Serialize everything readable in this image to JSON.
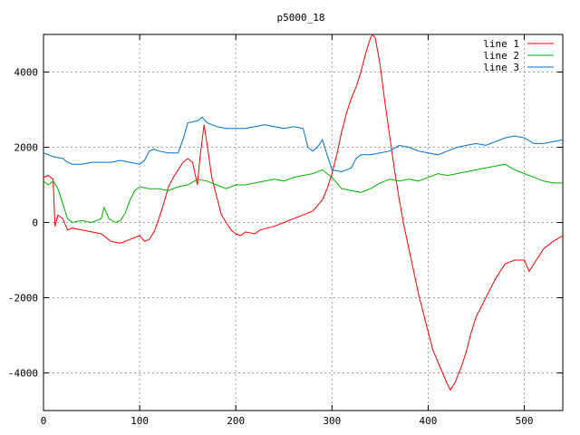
{
  "chart_data": {
    "type": "line",
    "title": "p5000_18",
    "xlabel": "",
    "ylabel": "",
    "xlim": [
      0,
      540
    ],
    "ylim": [
      -5000,
      5000
    ],
    "xticks": [
      0,
      100,
      200,
      300,
      400,
      500
    ],
    "yticks": [
      -4000,
      -2000,
      0,
      2000,
      4000
    ],
    "grid": true,
    "legend_position": "top-right",
    "series": [
      {
        "name": "line 1",
        "color": "#ff0000",
        "points": [
          [
            0,
            1200
          ],
          [
            5,
            1250
          ],
          [
            10,
            1150
          ],
          [
            12,
            -100
          ],
          [
            15,
            200
          ],
          [
            20,
            100
          ],
          [
            25,
            -200
          ],
          [
            30,
            -150
          ],
          [
            40,
            -200
          ],
          [
            50,
            -250
          ],
          [
            60,
            -300
          ],
          [
            70,
            -500
          ],
          [
            80,
            -550
          ],
          [
            90,
            -450
          ],
          [
            100,
            -350
          ],
          [
            105,
            -500
          ],
          [
            110,
            -450
          ],
          [
            115,
            -250
          ],
          [
            120,
            100
          ],
          [
            125,
            500
          ],
          [
            130,
            950
          ],
          [
            135,
            1200
          ],
          [
            140,
            1400
          ],
          [
            145,
            1600
          ],
          [
            150,
            1700
          ],
          [
            155,
            1600
          ],
          [
            160,
            1000
          ],
          [
            163,
            1800
          ],
          [
            167,
            2600
          ],
          [
            170,
            2100
          ],
          [
            175,
            1200
          ],
          [
            180,
            700
          ],
          [
            185,
            200
          ],
          [
            190,
            0
          ],
          [
            195,
            -200
          ],
          [
            200,
            -300
          ],
          [
            205,
            -350
          ],
          [
            210,
            -250
          ],
          [
            220,
            -300
          ],
          [
            225,
            -200
          ],
          [
            240,
            -100
          ],
          [
            250,
            0
          ],
          [
            260,
            100
          ],
          [
            270,
            200
          ],
          [
            280,
            300
          ],
          [
            290,
            600
          ],
          [
            295,
            900
          ],
          [
            300,
            1300
          ],
          [
            305,
            1800
          ],
          [
            310,
            2400
          ],
          [
            315,
            2900
          ],
          [
            320,
            3300
          ],
          [
            325,
            3600
          ],
          [
            330,
            4000
          ],
          [
            335,
            4500
          ],
          [
            340,
            4900
          ],
          [
            342,
            5000
          ],
          [
            345,
            4900
          ],
          [
            350,
            4200
          ],
          [
            355,
            3200
          ],
          [
            360,
            2300
          ],
          [
            365,
            1400
          ],
          [
            370,
            600
          ],
          [
            375,
            -100
          ],
          [
            380,
            -700
          ],
          [
            385,
            -1300
          ],
          [
            390,
            -1900
          ],
          [
            395,
            -2400
          ],
          [
            400,
            -2900
          ],
          [
            405,
            -3400
          ],
          [
            410,
            -3700
          ],
          [
            415,
            -4000
          ],
          [
            420,
            -4300
          ],
          [
            423,
            -4450
          ],
          [
            428,
            -4250
          ],
          [
            435,
            -3800
          ],
          [
            440,
            -3400
          ],
          [
            445,
            -2900
          ],
          [
            450,
            -2500
          ],
          [
            460,
            -2000
          ],
          [
            470,
            -1500
          ],
          [
            480,
            -1100
          ],
          [
            490,
            -1000
          ],
          [
            500,
            -1000
          ],
          [
            505,
            -1300
          ],
          [
            510,
            -1100
          ],
          [
            520,
            -700
          ],
          [
            530,
            -500
          ],
          [
            540,
            -350
          ]
        ]
      },
      {
        "name": "line 2",
        "color": "#00b000",
        "points": [
          [
            0,
            1100
          ],
          [
            5,
            1000
          ],
          [
            10,
            1100
          ],
          [
            15,
            900
          ],
          [
            20,
            500
          ],
          [
            25,
            100
          ],
          [
            30,
            0
          ],
          [
            40,
            50
          ],
          [
            50,
            0
          ],
          [
            60,
            100
          ],
          [
            63,
            400
          ],
          [
            68,
            100
          ],
          [
            75,
            0
          ],
          [
            80,
            50
          ],
          [
            85,
            250
          ],
          [
            90,
            600
          ],
          [
            95,
            850
          ],
          [
            100,
            950
          ],
          [
            110,
            900
          ],
          [
            120,
            900
          ],
          [
            130,
            850
          ],
          [
            140,
            950
          ],
          [
            150,
            1000
          ],
          [
            160,
            1150
          ],
          [
            170,
            1100
          ],
          [
            180,
            1000
          ],
          [
            190,
            900
          ],
          [
            200,
            1000
          ],
          [
            210,
            1000
          ],
          [
            220,
            1050
          ],
          [
            230,
            1100
          ],
          [
            240,
            1150
          ],
          [
            250,
            1100
          ],
          [
            260,
            1200
          ],
          [
            270,
            1250
          ],
          [
            280,
            1300
          ],
          [
            290,
            1400
          ],
          [
            300,
            1200
          ],
          [
            310,
            900
          ],
          [
            320,
            850
          ],
          [
            330,
            800
          ],
          [
            340,
            900
          ],
          [
            350,
            1050
          ],
          [
            360,
            1150
          ],
          [
            370,
            1100
          ],
          [
            380,
            1150
          ],
          [
            390,
            1100
          ],
          [
            400,
            1200
          ],
          [
            410,
            1300
          ],
          [
            420,
            1250
          ],
          [
            430,
            1300
          ],
          [
            440,
            1350
          ],
          [
            450,
            1400
          ],
          [
            460,
            1450
          ],
          [
            470,
            1500
          ],
          [
            480,
            1550
          ],
          [
            490,
            1400
          ],
          [
            500,
            1300
          ],
          [
            510,
            1200
          ],
          [
            520,
            1100
          ],
          [
            530,
            1050
          ],
          [
            540,
            1050
          ]
        ]
      },
      {
        "name": "line 3",
        "color": "#0070d0",
        "points": [
          [
            0,
            1850
          ],
          [
            10,
            1750
          ],
          [
            20,
            1700
          ],
          [
            25,
            1600
          ],
          [
            30,
            1550
          ],
          [
            40,
            1550
          ],
          [
            50,
            1600
          ],
          [
            60,
            1600
          ],
          [
            70,
            1600
          ],
          [
            80,
            1650
          ],
          [
            90,
            1600
          ],
          [
            100,
            1550
          ],
          [
            105,
            1650
          ],
          [
            110,
            1900
          ],
          [
            115,
            1950
          ],
          [
            120,
            1900
          ],
          [
            130,
            1850
          ],
          [
            140,
            1850
          ],
          [
            145,
            2200
          ],
          [
            150,
            2650
          ],
          [
            160,
            2700
          ],
          [
            165,
            2800
          ],
          [
            170,
            2650
          ],
          [
            180,
            2550
          ],
          [
            190,
            2500
          ],
          [
            200,
            2500
          ],
          [
            210,
            2500
          ],
          [
            220,
            2550
          ],
          [
            230,
            2600
          ],
          [
            240,
            2550
          ],
          [
            250,
            2500
          ],
          [
            260,
            2550
          ],
          [
            270,
            2500
          ],
          [
            275,
            2000
          ],
          [
            280,
            1900
          ],
          [
            285,
            2000
          ],
          [
            290,
            2200
          ],
          [
            295,
            1800
          ],
          [
            300,
            1400
          ],
          [
            310,
            1350
          ],
          [
            320,
            1450
          ],
          [
            325,
            1700
          ],
          [
            330,
            1800
          ],
          [
            340,
            1800
          ],
          [
            350,
            1850
          ],
          [
            360,
            1900
          ],
          [
            370,
            2050
          ],
          [
            380,
            2000
          ],
          [
            390,
            1900
          ],
          [
            400,
            1850
          ],
          [
            410,
            1800
          ],
          [
            420,
            1900
          ],
          [
            430,
            2000
          ],
          [
            440,
            2050
          ],
          [
            450,
            2100
          ],
          [
            460,
            2050
          ],
          [
            470,
            2150
          ],
          [
            480,
            2250
          ],
          [
            490,
            2300
          ],
          [
            500,
            2250
          ],
          [
            510,
            2100
          ],
          [
            520,
            2100
          ],
          [
            530,
            2150
          ],
          [
            540,
            2200
          ]
        ]
      }
    ]
  }
}
